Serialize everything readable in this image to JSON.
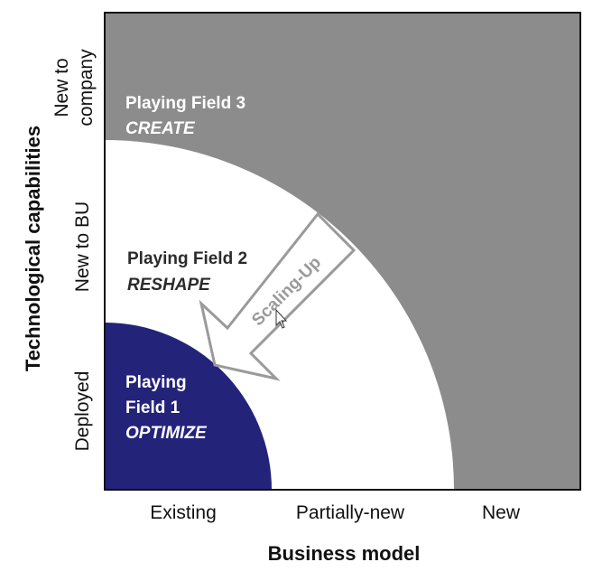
{
  "colors": {
    "outer_region": "#8c8c8c",
    "middle_region": "#ffffff",
    "inner_region": "#23237a",
    "arrow_outline": "#9a9a9a",
    "arrow_text": "#9a9a9a",
    "frame": "#111111"
  },
  "y_axis": {
    "title": "Technological capabilities",
    "ticks": [
      {
        "line1": "New to",
        "line2": "company"
      },
      {
        "line1": "New to BU"
      },
      {
        "line1": "Deployed"
      }
    ]
  },
  "x_axis": {
    "title": "Business model",
    "ticks": [
      "Existing",
      "Partially-new",
      "New"
    ]
  },
  "fields": {
    "pf3": {
      "name": "Playing Field 3",
      "action": "CREATE"
    },
    "pf2": {
      "name": "Playing Field 2",
      "action": "RESHAPE"
    },
    "pf1": {
      "name_line1": "Playing",
      "name_line2": "Field 1",
      "action": "OPTIMIZE"
    }
  },
  "arrow": {
    "label": "Scaling-Up"
  },
  "cursor_icon": "mouse-pointer-icon"
}
